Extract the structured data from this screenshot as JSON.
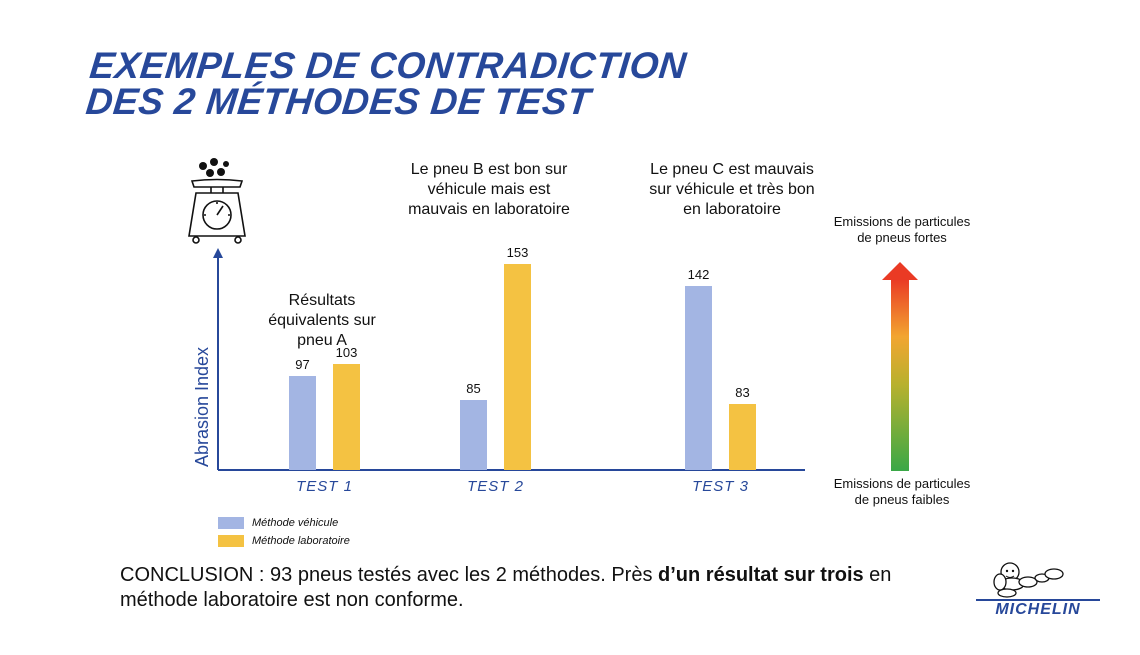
{
  "title": {
    "line1": "EXEMPLES DE CONTRADICTION",
    "line2": "DES 2 MÉTHODES DE TEST"
  },
  "annotations": {
    "test1": "Résultats équivalents sur pneu A",
    "test2": "Le pneu B est bon sur véhicule mais est mauvais en laboratoire",
    "test3": "Le pneu C est mauvais sur véhicule et très bon en laboratoire"
  },
  "scale": {
    "top_label": "Emissions de particules de pneus fortes",
    "bottom_label": "Emissions de particules de pneus faibles"
  },
  "conclusion": {
    "prefix": "CONCLUSION : 93 pneus testés avec les 2 méthodes. Près ",
    "bold": "d’un résultat sur trois",
    "suffix": " en méthode laboratoire est non conforme."
  },
  "logo": {
    "text": "MICHELIN"
  },
  "colors": {
    "vehicle": "#a3b5e3",
    "lab": "#f4c242",
    "axis": "#27489a",
    "title": "#27489a"
  },
  "icons": {
    "scale_icon": "weighing-scale-icon",
    "arrow_icon": "gradient-arrow-icon"
  },
  "chart_data": {
    "type": "bar",
    "categories": [
      "TEST 1",
      "TEST 2",
      "TEST 3"
    ],
    "series": [
      {
        "name": "Méthode véhicule",
        "values": [
          97,
          85,
          142
        ]
      },
      {
        "name": "Méthode laboratoire",
        "values": [
          103,
          153,
          83
        ]
      }
    ],
    "ylabel": "Abrasion Index",
    "xlabel": "",
    "ylim": [
      50,
      160
    ],
    "grid": false,
    "legend": "bottom-left"
  }
}
